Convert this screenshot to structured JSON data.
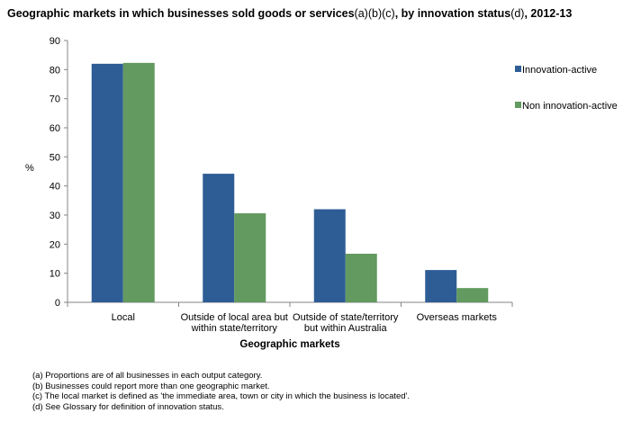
{
  "title_parts": [
    {
      "text": "Geographic markets in which businesses sold goods or services",
      "bold": true
    },
    {
      "text": "(a)(b)(c)",
      "bold": false
    },
    {
      "text": ", by innovation status",
      "bold": true
    },
    {
      "text": "(d)",
      "bold": false
    },
    {
      "text": ", 2012-13",
      "bold": true
    }
  ],
  "chart_data": {
    "type": "bar",
    "title": "Geographic markets in which businesses sold goods or services(a)(b)(c), by innovation status(d), 2012-13",
    "xlabel": "Geographic markets",
    "ylabel": "%",
    "ylim": [
      0,
      90
    ],
    "yticks": [
      0,
      10,
      20,
      30,
      40,
      50,
      60,
      70,
      80,
      90
    ],
    "grid": false,
    "legend_position": "right",
    "categories": [
      [
        "Local"
      ],
      [
        "Outside of local area but",
        "within state/territory"
      ],
      [
        "Outside of state/territory",
        "but within Australia"
      ],
      [
        "Overseas markets"
      ]
    ],
    "series": [
      {
        "name": "Innovation-active",
        "color": "#2E5D96",
        "values": [
          82.0,
          44.2,
          32.0,
          11.1
        ]
      },
      {
        "name": "Non innovation-active",
        "color": "#629A60",
        "values": [
          82.3,
          30.6,
          16.7,
          4.9
        ]
      }
    ]
  },
  "footnotes": [
    "(a) Proportions are of all businesses in each output category.",
    "(b) Businesses could report more than one geographic market.",
    "(c) The local market is defined as 'the immediate  area, town or city in which the business is located'.",
    "(d) See Glossary for definition of innovation status."
  ]
}
